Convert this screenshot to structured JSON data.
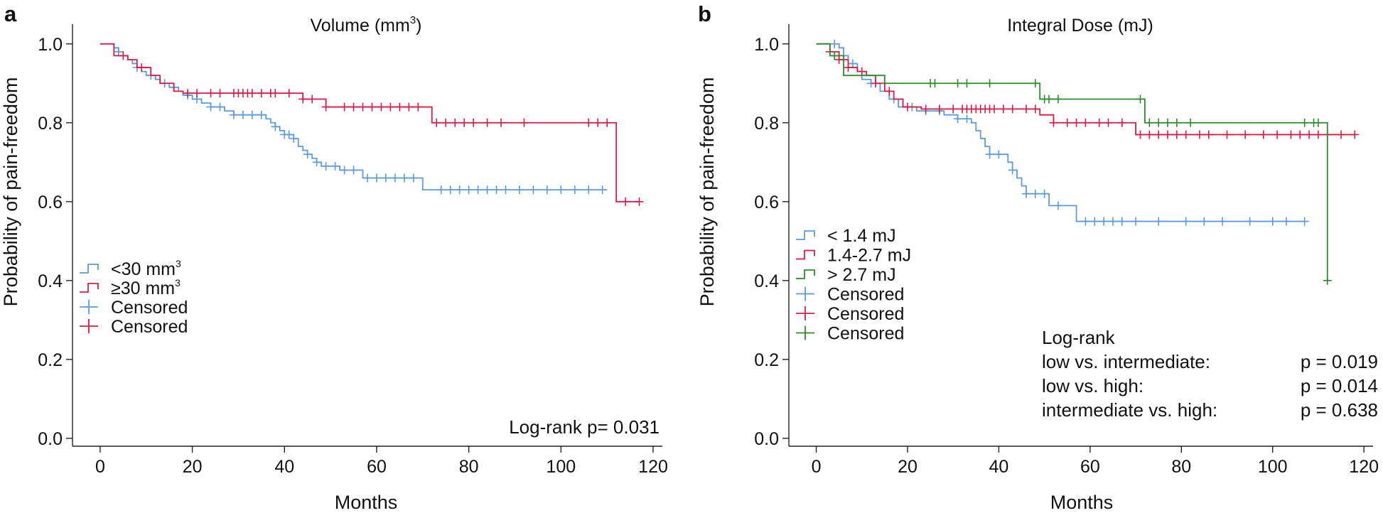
{
  "colors": {
    "blue": "#5b9bdb",
    "red": "#d81b46",
    "green": "#2e8b2e",
    "axis": "#222222",
    "text": "#111111"
  },
  "chart_data": [
    {
      "type": "line",
      "panel_label": "a",
      "title": "Volume (mm",
      "title_superscript": "3",
      "title_suffix": ")",
      "xlabel": "Months",
      "ylabel": "Probability of pain-freedom",
      "xlim": [
        -6,
        122
      ],
      "ylim": [
        -0.02,
        1.05
      ],
      "xticks": [
        0,
        20,
        40,
        60,
        80,
        100,
        120
      ],
      "yticks": [
        0.0,
        0.2,
        0.4,
        0.6,
        0.8,
        1.0
      ],
      "ytick_labels": [
        "0.0",
        "0.2",
        "0.4",
        "0.6",
        "0.8",
        "1.0"
      ],
      "series": [
        {
          "name": "<30 mm³",
          "color": "blue",
          "steps": [
            [
              0,
              1.0
            ],
            [
              3,
              0.99
            ],
            [
              4,
              0.98
            ],
            [
              5,
              0.97
            ],
            [
              6,
              0.96
            ],
            [
              7,
              0.95
            ],
            [
              8,
              0.94
            ],
            [
              9,
              0.93
            ],
            [
              10,
              0.92
            ],
            [
              12,
              0.91
            ],
            [
              13,
              0.9
            ],
            [
              15,
              0.89
            ],
            [
              17,
              0.88
            ],
            [
              18,
              0.87
            ],
            [
              20,
              0.86
            ],
            [
              22,
              0.85
            ],
            [
              24,
              0.84
            ],
            [
              27,
              0.83
            ],
            [
              29,
              0.82
            ],
            [
              36,
              0.81
            ],
            [
              37,
              0.8
            ],
            [
              38,
              0.79
            ],
            [
              39,
              0.78
            ],
            [
              40,
              0.77
            ],
            [
              42,
              0.76
            ],
            [
              43,
              0.74
            ],
            [
              44,
              0.73
            ],
            [
              45,
              0.72
            ],
            [
              46,
              0.71
            ],
            [
              47,
              0.7
            ],
            [
              48,
              0.69
            ],
            [
              52,
              0.68
            ],
            [
              57,
              0.66
            ],
            [
              70,
              0.63
            ],
            [
              110,
              0.63
            ]
          ],
          "censored": [
            4,
            8,
            11,
            14,
            16,
            19,
            21,
            24,
            26,
            29,
            31,
            33,
            35,
            38,
            40,
            41,
            42,
            45,
            47,
            49,
            51,
            53,
            55,
            58,
            60,
            62,
            64,
            66,
            68,
            74,
            76,
            78,
            80,
            82,
            84,
            86,
            88,
            91,
            94,
            97,
            100,
            103,
            106,
            109
          ]
        },
        {
          "name": "≥30 mm³",
          "color": "red",
          "steps": [
            [
              0,
              1.0
            ],
            [
              3,
              0.97
            ],
            [
              6,
              0.96
            ],
            [
              8,
              0.94
            ],
            [
              11,
              0.92
            ],
            [
              13,
              0.9
            ],
            [
              16,
              0.88
            ],
            [
              18,
              0.875
            ],
            [
              44,
              0.86
            ],
            [
              49,
              0.84
            ],
            [
              72,
              0.8
            ],
            [
              112,
              0.6
            ],
            [
              117,
              0.6
            ]
          ],
          "censored": [
            5,
            9,
            19,
            21,
            24,
            26,
            29,
            30,
            31,
            32,
            33,
            35,
            37,
            38,
            41,
            44,
            46,
            49,
            53,
            55,
            57,
            59,
            61,
            63,
            65,
            67,
            69,
            73,
            75,
            77,
            79,
            81,
            84,
            87,
            92,
            106,
            108,
            110,
            114,
            117
          ]
        }
      ],
      "legend": {
        "position": "bottom-left",
        "entries": [
          {
            "label": "<30 mm",
            "sup": "3",
            "color": "blue",
            "kind": "step"
          },
          {
            "label": "≥30 mm",
            "sup": "3",
            "color": "red",
            "kind": "step"
          },
          {
            "label": "Censored",
            "sup": "",
            "color": "blue",
            "kind": "plus"
          },
          {
            "label": "Censored",
            "sup": "",
            "color": "red",
            "kind": "plus"
          }
        ]
      },
      "stats": {
        "position": "bottom-right",
        "lines": [
          "Log-rank p= 0.031"
        ]
      }
    },
    {
      "type": "line",
      "panel_label": "b",
      "title": "Integral Dose (mJ)",
      "title_superscript": "",
      "title_suffix": "",
      "xlabel": "Months",
      "ylabel": "Probability of pain-freedom",
      "xlim": [
        -6,
        122
      ],
      "ylim": [
        -0.02,
        1.05
      ],
      "xticks": [
        0,
        20,
        40,
        60,
        80,
        100,
        120
      ],
      "yticks": [
        0.0,
        0.2,
        0.4,
        0.6,
        0.8,
        1.0
      ],
      "ytick_labels": [
        "0.0",
        "0.2",
        "0.4",
        "0.6",
        "0.8",
        "1.0"
      ],
      "series": [
        {
          "name": "< 1.4 mJ",
          "color": "blue",
          "steps": [
            [
              0,
              1.0
            ],
            [
              5,
              0.99
            ],
            [
              6,
              0.97
            ],
            [
              7,
              0.95
            ],
            [
              9,
              0.93
            ],
            [
              10,
              0.91
            ],
            [
              12,
              0.9
            ],
            [
              14,
              0.88
            ],
            [
              16,
              0.86
            ],
            [
              18,
              0.84
            ],
            [
              22,
              0.83
            ],
            [
              28,
              0.82
            ],
            [
              31,
              0.81
            ],
            [
              34,
              0.8
            ],
            [
              35,
              0.78
            ],
            [
              36,
              0.76
            ],
            [
              37,
              0.74
            ],
            [
              38,
              0.72
            ],
            [
              42,
              0.7
            ],
            [
              43,
              0.68
            ],
            [
              44,
              0.66
            ],
            [
              45,
              0.64
            ],
            [
              46,
              0.62
            ],
            [
              51,
              0.59
            ],
            [
              57,
              0.55
            ],
            [
              107,
              0.55
            ]
          ],
          "censored": [
            4,
            8,
            12,
            17,
            21,
            24,
            27,
            31,
            33,
            38,
            40,
            43,
            46,
            48,
            50,
            53,
            59,
            61,
            63,
            65,
            67,
            70,
            75,
            81,
            85,
            89,
            95,
            100,
            103,
            107
          ]
        },
        {
          "name": "1.4-2.7 mJ",
          "color": "red",
          "steps": [
            [
              0,
              1.0
            ],
            [
              3,
              0.98
            ],
            [
              5,
              0.96
            ],
            [
              7,
              0.94
            ],
            [
              9,
              0.93
            ],
            [
              11,
              0.92
            ],
            [
              13,
              0.9
            ],
            [
              15,
              0.88
            ],
            [
              17,
              0.86
            ],
            [
              19,
              0.84
            ],
            [
              23,
              0.835
            ],
            [
              49,
              0.82
            ],
            [
              52,
              0.8
            ],
            [
              70,
              0.77
            ],
            [
              118,
              0.77
            ]
          ],
          "censored": [
            3,
            5,
            7,
            10,
            13,
            16,
            20,
            24,
            27,
            30,
            32,
            33,
            34,
            35,
            36,
            37,
            38,
            39,
            41,
            43,
            46,
            48,
            52,
            55,
            57,
            59,
            62,
            64,
            67,
            71,
            73,
            75,
            77,
            79,
            81,
            84,
            86,
            90,
            94,
            98,
            101,
            104,
            106,
            108,
            110,
            112,
            115,
            118
          ]
        },
        {
          "name": "> 2.7 mJ",
          "color": "green",
          "steps": [
            [
              0,
              1.0
            ],
            [
              3,
              0.97
            ],
            [
              6,
              0.92
            ],
            [
              15,
              0.9
            ],
            [
              49,
              0.86
            ],
            [
              72,
              0.8
            ],
            [
              112,
              0.4
            ]
          ],
          "censored": [
            4,
            25,
            26,
            31,
            33,
            38,
            48,
            50,
            51,
            53,
            71,
            73,
            75,
            77,
            79,
            82,
            107,
            109,
            110,
            112
          ]
        }
      ],
      "legend": {
        "position": "bottom-left",
        "entries": [
          {
            "label": "< 1.4 mJ",
            "sup": "",
            "color": "blue",
            "kind": "step"
          },
          {
            "label": "1.4-2.7 mJ",
            "sup": "",
            "color": "red",
            "kind": "step"
          },
          {
            "label": "> 2.7 mJ",
            "sup": "",
            "color": "green",
            "kind": "step"
          },
          {
            "label": "Censored",
            "sup": "",
            "color": "blue",
            "kind": "plus"
          },
          {
            "label": "Censored",
            "sup": "",
            "color": "red",
            "kind": "plus"
          },
          {
            "label": "Censored",
            "sup": "",
            "color": "green",
            "kind": "plus"
          }
        ]
      },
      "stats": {
        "position": "bottom-right",
        "title": "Log-rank",
        "rows": [
          {
            "label": "low vs. intermediate:",
            "value": "p = 0.019"
          },
          {
            "label": "low vs. high:",
            "value": "p = 0.014"
          },
          {
            "label": "intermediate vs. high:",
            "value": "p = 0.638"
          }
        ]
      }
    }
  ]
}
